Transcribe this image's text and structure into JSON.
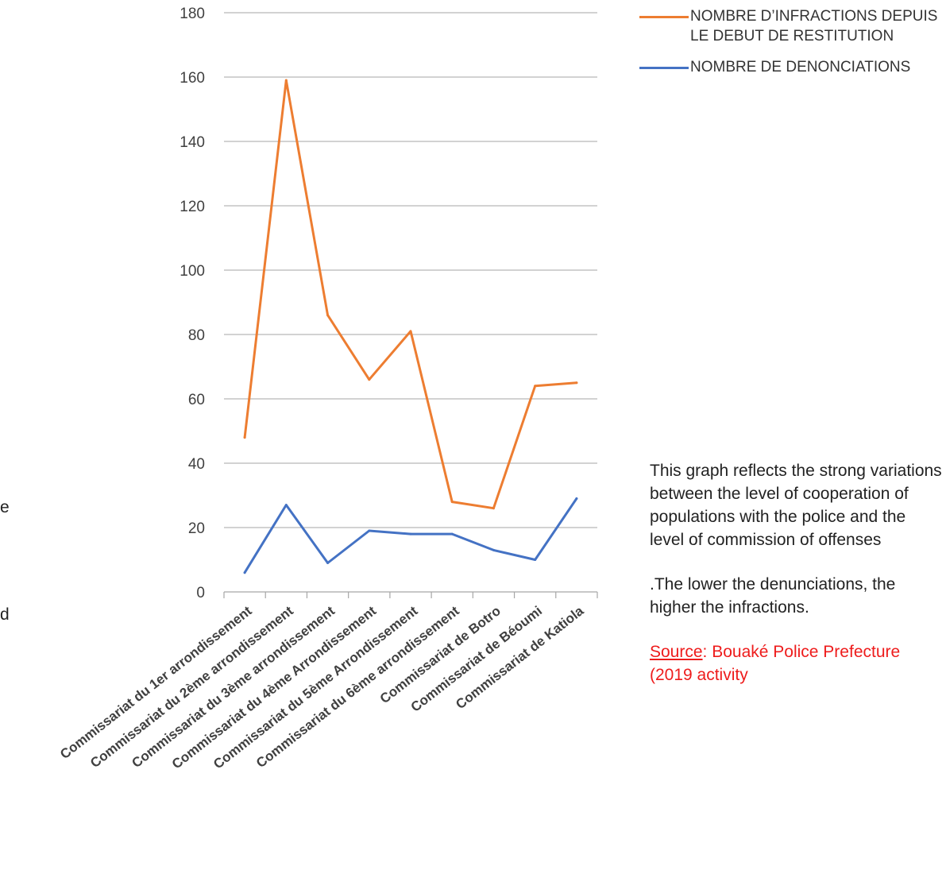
{
  "chart_data": {
    "type": "line",
    "categories": [
      "Commissariat du  1er arrondissement",
      "Commissariat du 2ème arrondissement",
      "Commissariat du 3ème arrondissement",
      "Commissariat du 4ème Arrondissement",
      "Commissariat du 5ème Arrondissement",
      "Commissariat du 6ème arrondissement",
      "Commissariat de Botro",
      "Commissariat de  Béoumi",
      "Commissariat de Katiola"
    ],
    "series": [
      {
        "name": "NOMBRE D’INFRACTIONS DEPUIS LE DEBUT DE RESTITUTION",
        "color": "#ed7d31",
        "values": [
          48,
          159,
          86,
          66,
          81,
          28,
          26,
          64,
          65
        ]
      },
      {
        "name": "NOMBRE DE DENONCIATIONS",
        "color": "#4472c4",
        "values": [
          6,
          27,
          9,
          19,
          18,
          18,
          13,
          10,
          29
        ]
      }
    ],
    "ylim": [
      0,
      180
    ],
    "yticks": [
      "0",
      "20",
      "40",
      "60",
      "80",
      "100",
      "120",
      "140",
      "160",
      "180"
    ],
    "grid": true,
    "legend_position": "top-right",
    "gridline_color": "#a6a6a6"
  },
  "annotation": {
    "paragraph1": "This graph reflects the strong variations between the level of cooperation of populations with the police and the level of commission of offenses",
    "paragraph2": ".The lower the denunciations, the higher the infractions.",
    "source_label": "Source",
    "source_text": ": Bouaké Police Prefecture (2019 activity"
  },
  "edge_text": {
    "char1": "e",
    "char2": "d"
  }
}
